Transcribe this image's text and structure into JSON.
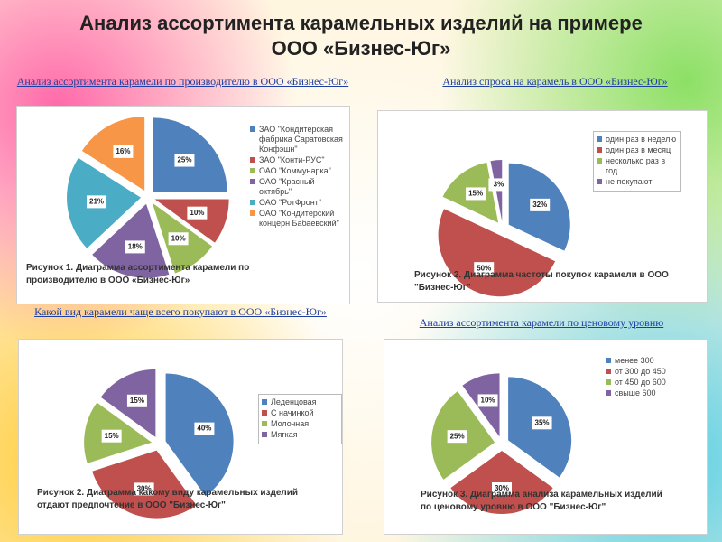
{
  "title": "Анализ ассортимента карамельных изделий на примере ООО «Бизнес-Юг»",
  "chart_data": [
    {
      "type": "pie",
      "title": "Анализ ассортимента карамели по производителю в ООО «Бизнес-Юг»",
      "caption": "Рисунок 1. Диаграмма ассортимента карамели по производителю в ООО «Бизнес-Юг»",
      "categories": [
        "ЗАО \"Кондитерская фабрика Саратовская Конфэшн\"",
        "ЗАО \"Конти-РУС\"",
        "ОАО \"Коммунарка\"",
        "ОАО \"Красный октябрь\"",
        "ОАО \"РотФронт\"",
        "ОАО \"Кондитерский концерн Бабаевский\""
      ],
      "values": [
        25,
        10,
        10,
        18,
        21,
        16
      ],
      "value_labels": [
        "25%",
        "10%",
        "10%",
        "18%",
        "21%",
        "16%"
      ],
      "colors": [
        "#4f81bd",
        "#c0504d",
        "#9bbb59",
        "#8064a2",
        "#4bacc6",
        "#f79646"
      ]
    },
    {
      "type": "pie",
      "title": "Анализ спроса на карамель в ООО «Бизнес-Юг»",
      "caption": "Рисунок 2. Диаграмма частоты покупок карамели в ООО \"Бизнес-Юг\"",
      "categories": [
        "один раз в неделю",
        "один раз в месяц",
        "несколько раз в год",
        "не покупают"
      ],
      "values": [
        32,
        50,
        15,
        3
      ],
      "value_labels": [
        "32%",
        "50%",
        "15%",
        "3%"
      ],
      "colors": [
        "#4f81bd",
        "#c0504d",
        "#9bbb59",
        "#8064a2"
      ]
    },
    {
      "type": "pie",
      "title": "Какой вид карамели чаще всего покупают в ООО «Бизнес-Юг»",
      "caption": "Рисунок 2. Диаграмма какому виду карамельных изделий отдают предпочтение в ООО \"Бизнес-Юг\"",
      "categories": [
        "Леденцовая",
        "С начинкой",
        "Молочная",
        "Мягкая"
      ],
      "values": [
        40,
        30,
        15,
        15
      ],
      "value_labels": [
        "40%",
        "30%",
        "15%",
        "15%"
      ],
      "colors": [
        "#4f81bd",
        "#c0504d",
        "#9bbb59",
        "#8064a2"
      ]
    },
    {
      "type": "pie",
      "title": "Анализ ассортимента карамели по ценовому уровню",
      "caption": "Рисунок 3. Диаграмма анализа карамельных изделий по ценовому уровню в ООО \"Бизнес-Юг\"",
      "categories": [
        "менее 300",
        "от 300 до 450",
        "от 450 до 600",
        "свыше 600"
      ],
      "values": [
        35,
        30,
        25,
        10
      ],
      "value_labels": [
        "35%",
        "30%",
        "25%",
        "10%"
      ],
      "colors": [
        "#4f81bd",
        "#c0504d",
        "#9bbb59",
        "#8064a2"
      ]
    }
  ]
}
